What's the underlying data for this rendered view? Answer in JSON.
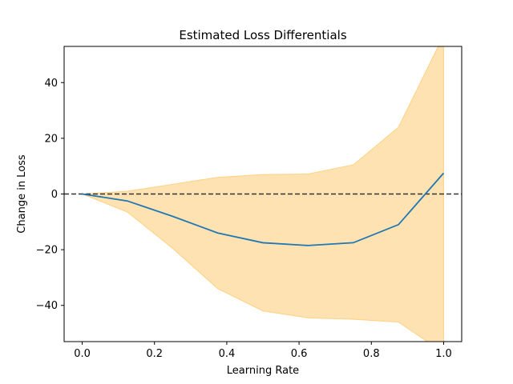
{
  "chart_data": {
    "type": "line",
    "title": "Estimated Loss Differentials",
    "xlabel": "Learning Rate",
    "ylabel": "Change in Loss",
    "xlim": [
      -0.05,
      1.05
    ],
    "ylim": [
      -53,
      53
    ],
    "xticks": [
      0.0,
      0.2,
      0.4,
      0.6,
      0.8,
      1.0
    ],
    "xtick_labels": [
      "0.0",
      "0.2",
      "0.4",
      "0.6",
      "0.8",
      "1.0"
    ],
    "yticks": [
      -40,
      -20,
      0,
      20,
      40
    ],
    "ytick_labels": [
      "−40",
      "−20",
      "0",
      "20",
      "40"
    ],
    "grid": false,
    "reference_line": {
      "y": 0,
      "style": "dashed",
      "color": "#333333"
    },
    "series": [
      {
        "x": [
          0.0,
          0.125,
          0.25,
          0.375,
          0.5,
          0.625,
          0.75,
          0.875,
          1.0
        ],
        "y": [
          0,
          -2.5,
          -8,
          -14,
          -17.5,
          -18.5,
          -17.5,
          -11,
          7.5
        ],
        "color": "#1f77b4"
      }
    ],
    "band": {
      "x": [
        0.0,
        0.125,
        0.25,
        0.375,
        0.5,
        0.625,
        0.75,
        0.875,
        1.0
      ],
      "lower": [
        0,
        -6.5,
        -19.5,
        -34,
        -42,
        -44.5,
        -45,
        -46,
        -57
      ],
      "upper": [
        0,
        1,
        3.5,
        6,
        7,
        7.2,
        10.5,
        24,
        57
      ],
      "color": "#ffbe52",
      "opacity": 0.45
    }
  }
}
